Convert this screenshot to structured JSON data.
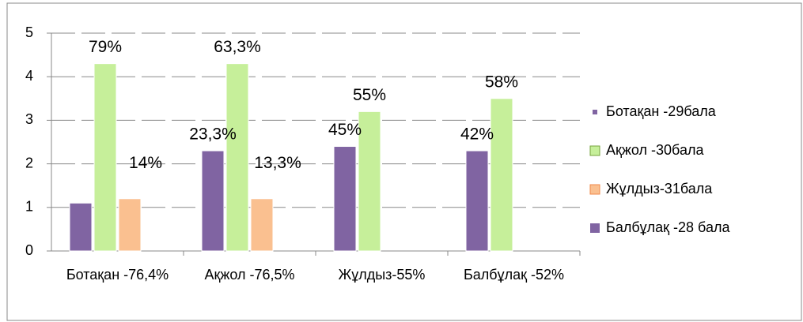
{
  "chart_data": {
    "type": "bar",
    "categories": [
      "Ботақан -76,4%",
      "Ақжол -76,5%",
      "Жұлдыз-55%",
      "Балбұлақ -52%"
    ],
    "series": [
      {
        "name": "Ботақан -29бала",
        "color": "#8064a2",
        "values": [
          1.1,
          2.3,
          2.4,
          2.3
        ]
      },
      {
        "name": "Ақжол -30бала",
        "color": "#c6ef9a",
        "values": [
          4.3,
          4.3,
          3.2,
          3.5
        ]
      },
      {
        "name": "Жұлдыз-31бала",
        "color": "#fac090",
        "values": [
          1.2,
          1.2,
          null,
          null
        ]
      },
      {
        "name": "Балбұлақ -28 бала",
        "color": "#8064a2",
        "values": [
          null,
          null,
          null,
          null
        ]
      }
    ],
    "annotations": [
      {
        "text": "79%",
        "series": 1,
        "category": 0
      },
      {
        "text": "14%",
        "series": 2,
        "category": 0
      },
      {
        "text": "23,3%",
        "series": 0,
        "category": 1
      },
      {
        "text": "63,3%",
        "series": 1,
        "category": 1
      },
      {
        "text": "13,3%",
        "series": 2,
        "category": 1
      },
      {
        "text": "45%",
        "series": 0,
        "category": 2
      },
      {
        "text": "55%",
        "series": 1,
        "category": 2
      },
      {
        "text": "42%",
        "series": 0,
        "category": 3
      },
      {
        "text": "58%",
        "series": 1,
        "category": 3
      }
    ],
    "ylim": [
      0,
      5
    ],
    "yticks": [
      0,
      1,
      2,
      3,
      4,
      5
    ],
    "grid": true,
    "legend": "right"
  }
}
